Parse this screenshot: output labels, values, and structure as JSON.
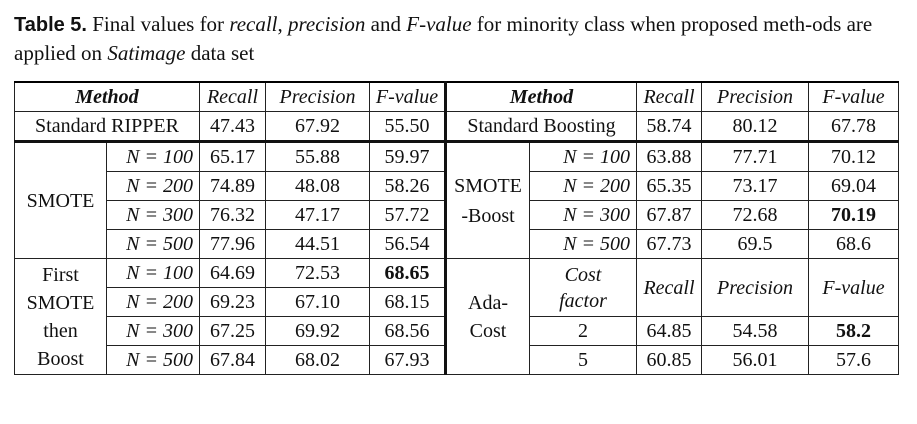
{
  "caption": {
    "label": "Table 5.",
    "text_parts": [
      "Final values for ",
      "recall",
      ", ",
      "precision",
      " and ",
      "F-value",
      " for minority class when proposed meth-ods are applied on ",
      "Satimage",
      " data set"
    ]
  },
  "headers": {
    "method": "Method",
    "recall": "Recall",
    "precision": "Precision",
    "fvalue": "F-value"
  },
  "standard": {
    "ripper": {
      "label": "Standard RIPPER",
      "recall": "47.43",
      "precision": "67.92",
      "fvalue": "55.50"
    },
    "boosting": {
      "label": "Standard Boosting",
      "recall": "58.74",
      "precision": "80.12",
      "fvalue": "67.78"
    }
  },
  "smote": {
    "label": "SMOTE",
    "rows": [
      {
        "n": "N = 100",
        "recall": "65.17",
        "precision": "55.88",
        "fvalue": "59.97"
      },
      {
        "n": "N = 200",
        "recall": "74.89",
        "precision": "48.08",
        "fvalue": "58.26"
      },
      {
        "n": "N = 300",
        "recall": "76.32",
        "precision": "47.17",
        "fvalue": "57.72"
      },
      {
        "n": "N = 500",
        "recall": "77.96",
        "precision": "44.51",
        "fvalue": "56.54"
      }
    ]
  },
  "smoteboost": {
    "label_line1": "SMOTE",
    "label_line2": "-Boost",
    "rows": [
      {
        "n": "N = 100",
        "recall": "63.88",
        "precision": "77.71",
        "fvalue": "70.12"
      },
      {
        "n": "N = 200",
        "recall": "65.35",
        "precision": "73.17",
        "fvalue": "69.04"
      },
      {
        "n": "N = 300",
        "recall": "67.87",
        "precision": "72.68",
        "fvalue": "70.19"
      },
      {
        "n": "N = 500",
        "recall": "67.73",
        "precision": "69.5",
        "fvalue": "68.6"
      }
    ]
  },
  "first_smote": {
    "label_lines": [
      "First",
      "SMOTE",
      "then",
      "Boost"
    ],
    "rows": [
      {
        "n": "N = 100",
        "recall": "64.69",
        "precision": "72.53",
        "fvalue": "68.65"
      },
      {
        "n": "N = 200",
        "recall": "69.23",
        "precision": "67.10",
        "fvalue": "68.15"
      },
      {
        "n": "N = 300",
        "recall": "67.25",
        "precision": "69.92",
        "fvalue": "68.56"
      },
      {
        "n": "N = 500",
        "recall": "67.84",
        "precision": "68.02",
        "fvalue": "67.93"
      }
    ]
  },
  "adacost": {
    "label_line1": "Ada-",
    "label_line2": "Cost",
    "cost_line1": "Cost",
    "cost_line2": "factor",
    "rows": [
      {
        "cost": "2",
        "recall": "64.85",
        "precision": "54.58",
        "fvalue": "58.2"
      },
      {
        "cost": "5",
        "recall": "60.85",
        "precision": "56.01",
        "fvalue": "57.6"
      }
    ]
  }
}
